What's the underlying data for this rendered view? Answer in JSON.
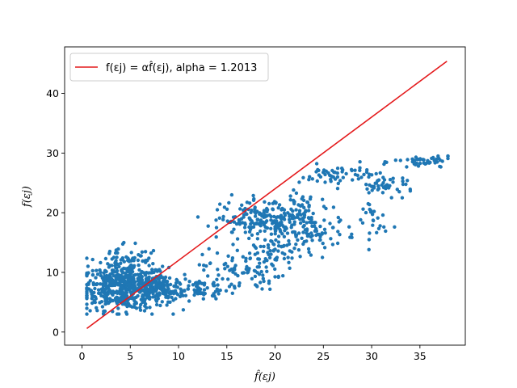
{
  "chart_data": {
    "type": "scatter",
    "xlabel": "f̂(εj)",
    "ylabel": "f(εj)",
    "xlim": [
      -1.8,
      39.7
    ],
    "ylim": [
      -2.2,
      47.8
    ],
    "xticks": [
      0,
      5,
      10,
      15,
      20,
      25,
      30,
      35
    ],
    "yticks": [
      0,
      10,
      20,
      30,
      40
    ],
    "grid": false,
    "legend_position": "top-left",
    "colors": {
      "points": "#1f77b4",
      "fit_line": "#e41a1c",
      "axes": "#000000"
    },
    "fit_line": {
      "label": "f(εj) = αf̂(εj), alpha = 1.2013",
      "alpha": 1.2013,
      "x": [
        0.5,
        37.8
      ],
      "y": [
        0.6,
        45.4
      ]
    },
    "clusters": [
      {
        "cx": 4.5,
        "cy": 7.5,
        "sx": 2.2,
        "sy": 1.9,
        "n": 520
      },
      {
        "cx": 8.0,
        "cy": 7.2,
        "sx": 1.3,
        "sy": 1.2,
        "n": 120
      },
      {
        "cx": 4.5,
        "cy": 12.0,
        "sx": 1.8,
        "sy": 1.6,
        "n": 60
      },
      {
        "cx": 12.0,
        "cy": 7.3,
        "sx": 1.6,
        "sy": 0.9,
        "n": 70
      },
      {
        "cx": 16.5,
        "cy": 10.5,
        "sx": 2.0,
        "sy": 1.8,
        "n": 80
      },
      {
        "cx": 19.5,
        "cy": 18.5,
        "sx": 2.5,
        "sy": 2.0,
        "n": 200
      },
      {
        "cx": 24.0,
        "cy": 17.0,
        "sx": 2.2,
        "sy": 1.4,
        "n": 80
      },
      {
        "cx": 20.5,
        "cy": 13.0,
        "sx": 1.6,
        "sy": 1.6,
        "n": 40
      },
      {
        "cx": 26.5,
        "cy": 26.2,
        "sx": 2.0,
        "sy": 0.9,
        "n": 60
      },
      {
        "cx": 31.5,
        "cy": 24.5,
        "sx": 1.5,
        "sy": 0.8,
        "n": 40
      },
      {
        "cx": 35.5,
        "cy": 28.5,
        "sx": 1.6,
        "sy": 0.6,
        "n": 45
      },
      {
        "cx": 30.0,
        "cy": 18.5,
        "sx": 0.8,
        "sy": 2.2,
        "n": 25
      },
      {
        "cx": 23.0,
        "cy": 21.0,
        "sx": 1.0,
        "sy": 1.5,
        "n": 30
      },
      {
        "cx": 15.5,
        "cy": 18.5,
        "sx": 1.0,
        "sy": 0.8,
        "n": 15
      }
    ]
  }
}
